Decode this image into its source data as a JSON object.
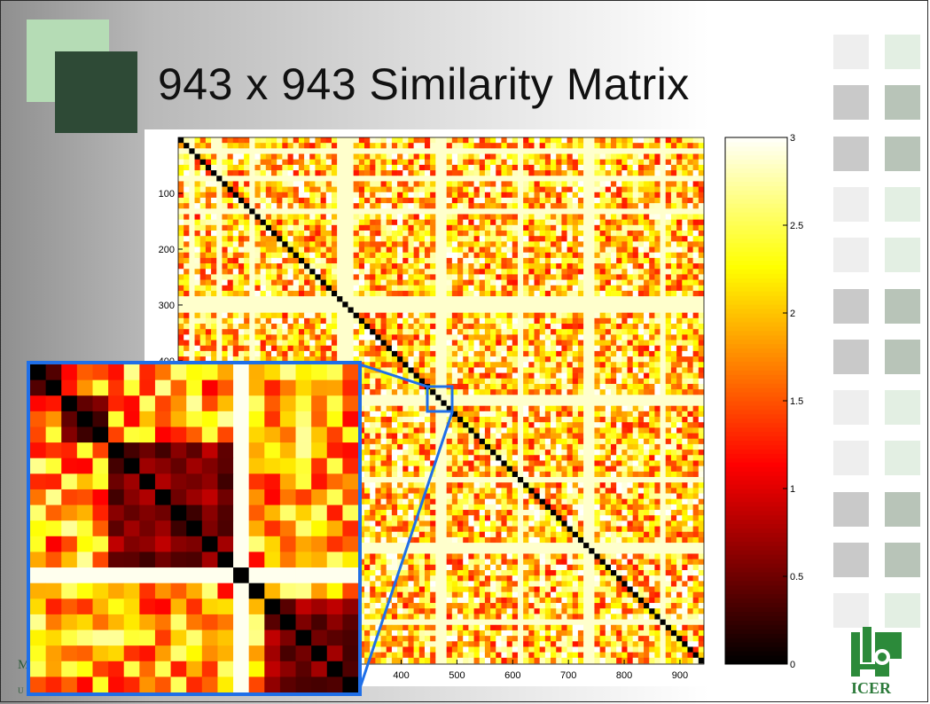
{
  "slide": {
    "title": "943 x 943 Similarity Matrix",
    "footer_partial_1": "M",
    "footer_partial_2": "U N I V E R S I T Y",
    "logo_text": "ICER"
  },
  "colors": {
    "accent_dark_green": "#2d4a35",
    "accent_light_green": "#b3dbb3",
    "zoom_outline": "#1f6fe8",
    "logo_green": "#2c8a3a"
  },
  "chart_data": {
    "type": "heatmap",
    "title": "943 x 943 Similarity Matrix",
    "matrix_size": [
      943,
      943
    ],
    "colormap": "hot",
    "clim": [
      0,
      3
    ],
    "x_ticks": [
      400,
      500,
      600,
      700,
      800,
      900
    ],
    "y_ticks": [
      100,
      200,
      300,
      400
    ],
    "colorbar_ticks": [
      0,
      0.5,
      1,
      1.5,
      2,
      2.5,
      3
    ],
    "diagonal_value": 0,
    "zoom_region": {
      "x": [
        450,
        495
      ],
      "y": [
        445,
        490
      ]
    },
    "inset_description_values": "block-structured low-distance cluster near index 460-490"
  }
}
